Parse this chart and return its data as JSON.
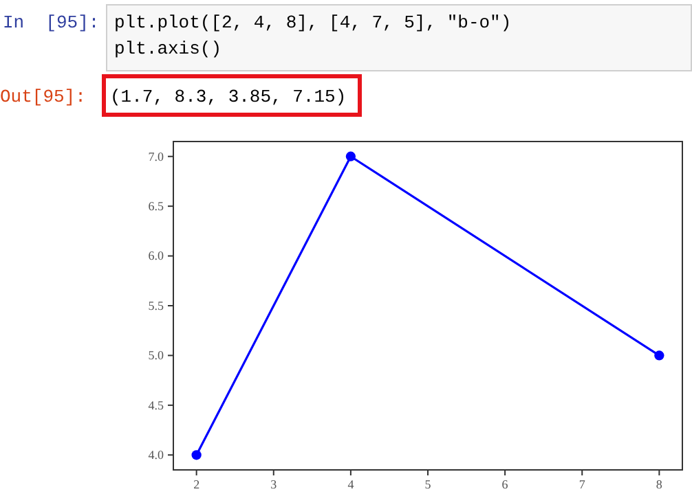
{
  "chart_data": {
    "type": "line",
    "x": [
      2,
      4,
      8
    ],
    "series": [
      {
        "color": "#0000ff",
        "values": [
          4,
          7,
          5
        ]
      }
    ],
    "xlim": [
      1.7,
      8.3
    ],
    "xticks": [
      2,
      3,
      4,
      5,
      6,
      7,
      8
    ],
    "ylim": [
      3.85,
      7.15
    ],
    "yticks": [
      {
        "value": 4,
        "label": "4.0"
      },
      {
        "value": 4.5,
        "label": "4.5"
      },
      {
        "value": 5,
        "label": "5.0"
      },
      {
        "value": 5.5,
        "label": "5.5"
      },
      {
        "value": 6,
        "label": "6.0"
      },
      {
        "value": 6.5,
        "label": "6.5"
      },
      {
        "value": 7,
        "label": "7.0"
      }
    ],
    "grid": false,
    "marker": "circle",
    "line_style": "solid",
    "annotations": [
      "In  [95]:",
      "plt.plot([2, 4, 8], [4, 7, 5], ″b-o″)",
      "plt.axis()",
      "Out[95]:",
      "(1.7, 8.3, 3.85, 7.15)"
    ]
  }
}
